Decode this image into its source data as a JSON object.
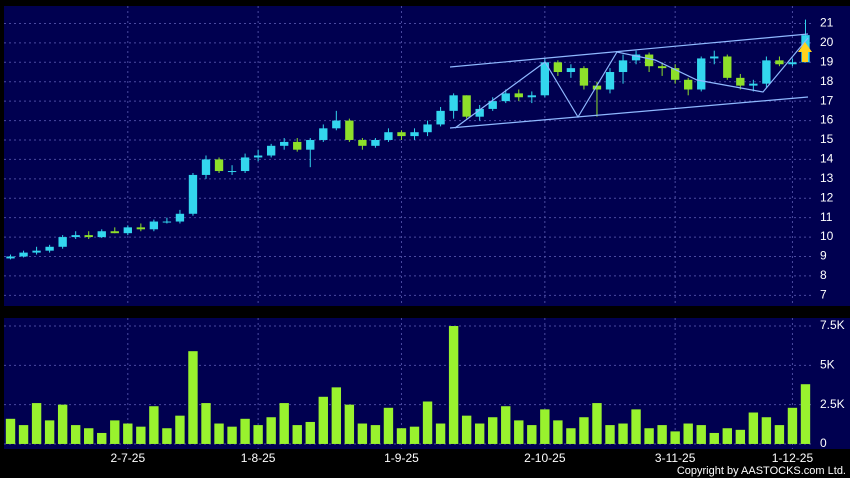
{
  "chart_data": [
    {
      "type": "candlestick",
      "up_color": "#33d6ee",
      "down_color": "#8ee02a",
      "open": [
        8.9,
        9.0,
        9.2,
        9.3,
        9.5,
        10.0,
        10.1,
        10.0,
        10.3,
        10.2,
        10.5,
        10.4,
        10.8,
        10.8,
        11.2,
        13.2,
        14.0,
        13.4,
        13.4,
        14.1,
        14.2,
        14.7,
        14.9,
        14.5,
        15.0,
        15.6,
        16.0,
        15.0,
        14.7,
        15.0,
        15.4,
        15.2,
        15.4,
        15.8,
        16.5,
        17.3,
        16.2,
        16.6,
        17.0,
        17.4,
        17.2,
        17.3,
        19.0,
        18.5,
        18.7,
        17.8,
        17.6,
        18.5,
        19.1,
        19.4,
        18.8,
        18.7,
        18.1,
        17.6,
        19.2,
        19.3,
        18.2,
        17.8,
        17.9,
        19.1,
        18.9,
        19.0
      ],
      "high": [
        9.1,
        9.3,
        9.5,
        9.6,
        10.1,
        10.3,
        10.3,
        10.4,
        10.5,
        10.6,
        10.7,
        10.9,
        11.0,
        11.4,
        13.3,
        14.2,
        14.1,
        13.7,
        14.3,
        14.5,
        14.8,
        15.1,
        15.1,
        15.1,
        15.8,
        16.5,
        16.1,
        15.1,
        15.1,
        15.6,
        15.5,
        15.6,
        16.0,
        16.7,
        17.4,
        17.3,
        16.8,
        17.2,
        17.6,
        17.6,
        17.5,
        19.2,
        19.1,
        18.9,
        18.8,
        18.0,
        18.7,
        19.4,
        19.6,
        19.5,
        19.0,
        18.9,
        18.2,
        19.3,
        19.6,
        19.4,
        18.4,
        18.1,
        19.3,
        19.3,
        19.2,
        21.2
      ],
      "low": [
        8.85,
        8.95,
        9.1,
        9.2,
        9.4,
        9.9,
        9.9,
        9.95,
        10.2,
        10.1,
        10.3,
        10.3,
        10.7,
        10.7,
        11.1,
        13.0,
        13.3,
        13.2,
        13.3,
        13.9,
        14.1,
        14.5,
        14.4,
        13.6,
        14.9,
        15.5,
        14.9,
        14.5,
        14.6,
        14.9,
        15.0,
        15.0,
        15.2,
        15.7,
        16.1,
        16.1,
        16.0,
        16.5,
        16.9,
        17.0,
        16.9,
        17.2,
        18.3,
        18.2,
        17.6,
        16.2,
        17.4,
        17.9,
        18.9,
        18.5,
        18.3,
        17.9,
        17.3,
        17.5,
        18.9,
        18.1,
        17.6,
        17.5,
        17.7,
        18.8,
        18.8,
        19.0
      ],
      "close": [
        9.0,
        9.2,
        9.3,
        9.5,
        10.0,
        10.1,
        10.0,
        10.3,
        10.2,
        10.5,
        10.4,
        10.8,
        10.8,
        11.2,
        13.2,
        14.0,
        13.4,
        13.4,
        14.1,
        14.2,
        14.7,
        14.9,
        14.5,
        15.0,
        15.6,
        16.0,
        15.0,
        14.7,
        15.0,
        15.4,
        15.2,
        15.4,
        15.8,
        16.5,
        17.3,
        16.2,
        16.6,
        17.0,
        17.4,
        17.2,
        17.3,
        19.0,
        18.5,
        18.7,
        17.8,
        17.6,
        18.5,
        19.1,
        19.4,
        18.8,
        18.7,
        18.1,
        17.6,
        19.2,
        19.3,
        18.2,
        17.8,
        17.9,
        19.1,
        18.9,
        19.0,
        20.4
      ],
      "ylim": [
        6.45,
        21.9
      ],
      "yticks": [
        7,
        8,
        9,
        10,
        11,
        12,
        13,
        14,
        15,
        16,
        17,
        18,
        19,
        20,
        21
      ],
      "grid": true
    },
    {
      "type": "bar",
      "color": "#99f22e",
      "categories": [
        null,
        null,
        null,
        null,
        null,
        null,
        null,
        null,
        null,
        "2-7-25",
        null,
        null,
        null,
        null,
        null,
        null,
        null,
        null,
        null,
        "1-8-25",
        null,
        null,
        null,
        null,
        null,
        null,
        null,
        null,
        null,
        null,
        "1-9-25",
        null,
        null,
        null,
        null,
        null,
        null,
        null,
        null,
        null,
        null,
        "2-10-25",
        null,
        null,
        null,
        null,
        null,
        null,
        null,
        null,
        null,
        "3-11-25",
        null,
        null,
        null,
        null,
        null,
        null,
        null,
        null,
        "1-12-25",
        null
      ],
      "values": [
        1600,
        1200,
        2600,
        1500,
        2500,
        1200,
        1000,
        700,
        1500,
        1300,
        1100,
        2400,
        1000,
        1800,
        5900,
        2600,
        1300,
        1100,
        1600,
        1200,
        1700,
        2600,
        1200,
        1400,
        3000,
        3600,
        2500,
        1300,
        1200,
        2300,
        1000,
        1100,
        2700,
        1300,
        7500,
        1800,
        1300,
        1700,
        2400,
        1500,
        1200,
        2200,
        1500,
        1000,
        1700,
        2600,
        1200,
        1300,
        2200,
        1000,
        1200,
        800,
        1300,
        1200,
        700,
        1000,
        900,
        2000,
        1700,
        1200,
        2300,
        3800
      ],
      "ylim": [
        -320,
        8010
      ],
      "yticks": [
        0,
        {
          "value": 2500,
          "label": "2.5K"
        },
        {
          "value": 5000,
          "label": "5K"
        },
        {
          "value": 7500,
          "label": "7.5K"
        }
      ],
      "grid": true
    },
    {
      "type": "note",
      "copyright": "Copyright by AASTOCKS.com Ltd."
    }
  ]
}
